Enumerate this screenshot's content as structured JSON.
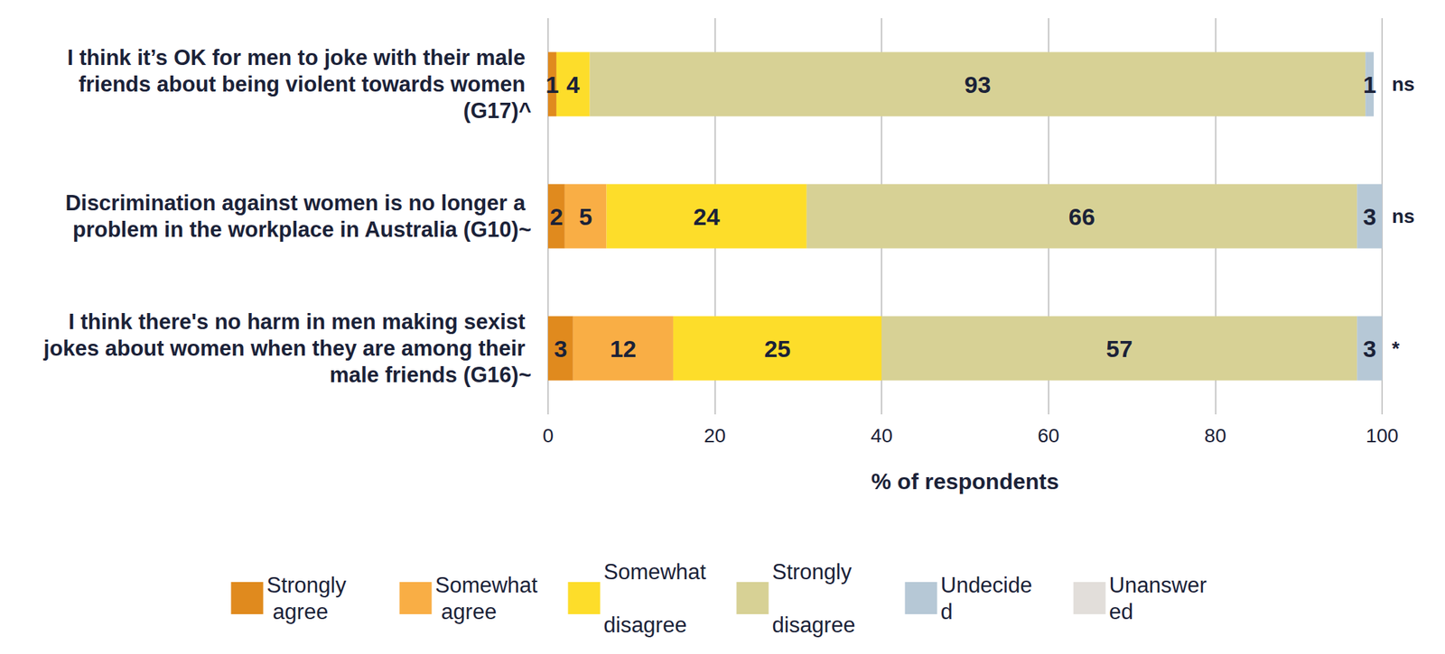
{
  "chart_data": {
    "type": "bar",
    "orientation": "horizontal",
    "stacked": true,
    "data_labels": true,
    "grid": true,
    "legend": "bottom",
    "categories": [
      "I think it’s OK for men to joke with their male friends about being violent towards women (G17)^",
      "Discrimination against women is no longer a problem in the workplace in Australia (G10)~",
      "I think there's no harm in men making sexist jokes about women when they are among their male friends (G16)~"
    ],
    "annotations": [
      "ns",
      "ns",
      "*"
    ],
    "xlabel": "% of respondents",
    "xlim": [
      0,
      100
    ],
    "xticks": [
      0,
      20,
      40,
      60,
      80,
      100
    ],
    "series": [
      {
        "name": "Strongly agree",
        "color": "#e08a1e",
        "values": [
          1,
          2,
          3
        ]
      },
      {
        "name": "Somewhat agree",
        "color": "#f9ae45",
        "values": [
          null,
          5,
          12
        ]
      },
      {
        "name": "Somewhat disagree",
        "color": "#fddd2a",
        "values": [
          4,
          24,
          25
        ]
      },
      {
        "name": "Strongly disagree",
        "color": "#d7d195",
        "values": [
          93,
          66,
          57
        ]
      },
      {
        "name": "Undecided",
        "color": "#b6c8d6",
        "values": [
          1,
          3,
          3
        ]
      },
      {
        "name": "Unanswered",
        "color": "#e2deda",
        "values": [
          null,
          null,
          null
        ]
      }
    ]
  }
}
